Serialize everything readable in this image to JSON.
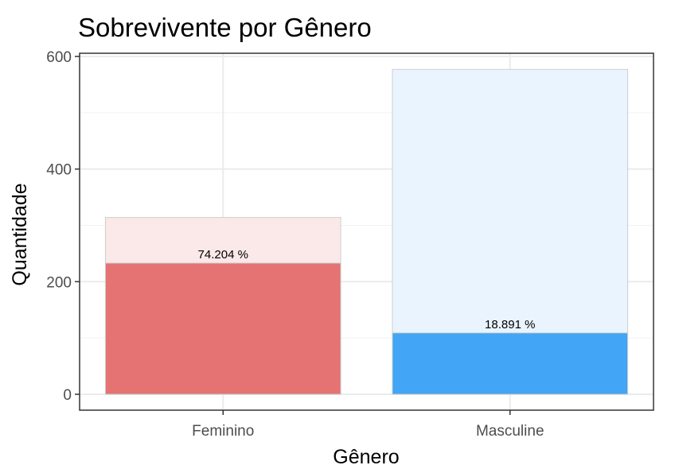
{
  "chart_data": {
    "type": "bar",
    "title": "Sobrevivente por Gênero",
    "xlabel": "Gênero",
    "ylabel": "Quantidade",
    "categories": [
      "Feminino",
      "Masculine"
    ],
    "series": [
      {
        "values": [
          314,
          577
        ],
        "colors": [
          "#fbe9e9",
          "#eaf4fe"
        ]
      },
      {
        "values": [
          233,
          109
        ],
        "colors": [
          "#e57373",
          "#42a5f5"
        ]
      }
    ],
    "data_labels": [
      "74.204 %",
      "18.891 %"
    ],
    "ylim": [
      0,
      600
    ],
    "yticks": [
      0,
      200,
      400,
      600
    ],
    "grid": true,
    "stacking": "overlay"
  }
}
